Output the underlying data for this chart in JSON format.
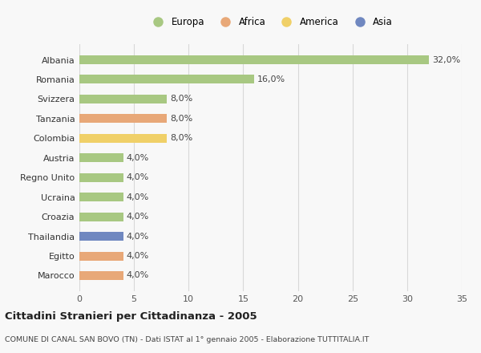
{
  "countries": [
    "Albania",
    "Romania",
    "Svizzera",
    "Tanzania",
    "Colombia",
    "Austria",
    "Regno Unito",
    "Ucraina",
    "Croazia",
    "Thailandia",
    "Egitto",
    "Marocco"
  ],
  "values": [
    32.0,
    16.0,
    8.0,
    8.0,
    8.0,
    4.0,
    4.0,
    4.0,
    4.0,
    4.0,
    4.0,
    4.0
  ],
  "labels": [
    "32,0%",
    "16,0%",
    "8,0%",
    "8,0%",
    "8,0%",
    "4,0%",
    "4,0%",
    "4,0%",
    "4,0%",
    "4,0%",
    "4,0%",
    "4,0%"
  ],
  "colors": [
    "#a8c882",
    "#a8c882",
    "#a8c882",
    "#e8a878",
    "#f0d068",
    "#a8c882",
    "#a8c882",
    "#a8c882",
    "#a8c882",
    "#7088c0",
    "#e8a878",
    "#e8a878"
  ],
  "legend_labels": [
    "Europa",
    "Africa",
    "America",
    "Asia"
  ],
  "legend_colors": [
    "#a8c882",
    "#e8a878",
    "#f0d068",
    "#7088c0"
  ],
  "xlim": [
    0,
    35
  ],
  "xticks": [
    0,
    5,
    10,
    15,
    20,
    25,
    30,
    35
  ],
  "title": "Cittadini Stranieri per Cittadinanza - 2005",
  "subtitle": "COMUNE DI CANAL SAN BOVO (TN) - Dati ISTAT al 1° gennaio 2005 - Elaborazione TUTTITALIA.IT",
  "background_color": "#f8f8f8",
  "grid_color": "#d8d8d8",
  "bar_height": 0.45
}
